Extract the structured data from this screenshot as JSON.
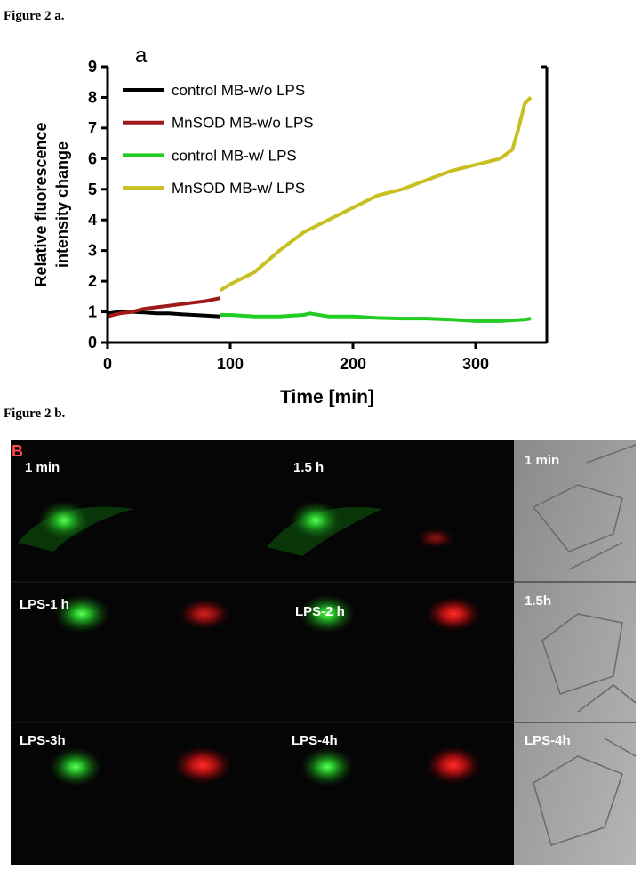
{
  "caption_a": "Figure 2 a.",
  "chart_data": {
    "type": "line",
    "title": "a",
    "xlabel": "Time [min]",
    "ylabel": [
      "Relative fluorescence",
      "intensity change"
    ],
    "xlim": [
      0,
      358
    ],
    "xticks": [
      0,
      100,
      200,
      300
    ],
    "ylim": [
      0,
      9
    ],
    "yticks": [
      0,
      1,
      2,
      3,
      4,
      5,
      6,
      7,
      8,
      9
    ],
    "legend": "upper left",
    "series": [
      {
        "name": "control MB-w/o LPS",
        "color": "#000000",
        "x": [
          0,
          10,
          20,
          30,
          40,
          50,
          60,
          70,
          80,
          92
        ],
        "values": [
          0.95,
          1.0,
          1.0,
          0.98,
          0.95,
          0.95,
          0.92,
          0.9,
          0.88,
          0.85
        ]
      },
      {
        "name": "MnSOD MB-w/o LPS",
        "color": "#a01a1a",
        "x": [
          0,
          10,
          20,
          30,
          40,
          50,
          60,
          70,
          80,
          92
        ],
        "values": [
          0.85,
          0.95,
          1.0,
          1.1,
          1.15,
          1.2,
          1.25,
          1.3,
          1.35,
          1.45
        ]
      },
      {
        "name": "control MB-w/ LPS",
        "color": "#22cc22",
        "x": [
          92,
          100,
          120,
          140,
          160,
          165,
          180,
          200,
          220,
          240,
          260,
          280,
          300,
          320,
          340,
          345
        ],
        "values": [
          0.9,
          0.9,
          0.85,
          0.85,
          0.9,
          0.95,
          0.85,
          0.85,
          0.8,
          0.78,
          0.78,
          0.75,
          0.7,
          0.7,
          0.75,
          0.78
        ]
      },
      {
        "name": "MnSOD MB-w/ LPS",
        "color": "#c8c020",
        "x": [
          92,
          100,
          120,
          140,
          160,
          180,
          200,
          220,
          240,
          260,
          280,
          300,
          320,
          330,
          335,
          340,
          345
        ],
        "values": [
          1.7,
          1.9,
          2.3,
          3.0,
          3.6,
          4.0,
          4.4,
          4.8,
          5.0,
          5.3,
          5.6,
          5.8,
          6.0,
          6.3,
          7.0,
          7.8,
          8.0
        ]
      }
    ]
  },
  "caption_b": "Figure 2 b.",
  "panel_b": {
    "label": "B",
    "rows": [
      [
        "1 min",
        "1.5 h",
        "1 min"
      ],
      [
        "LPS-1 h",
        "LPS-2 h",
        "1.5h"
      ],
      [
        "LPS-3h",
        "LPS-4h",
        "LPS-4h"
      ]
    ]
  }
}
